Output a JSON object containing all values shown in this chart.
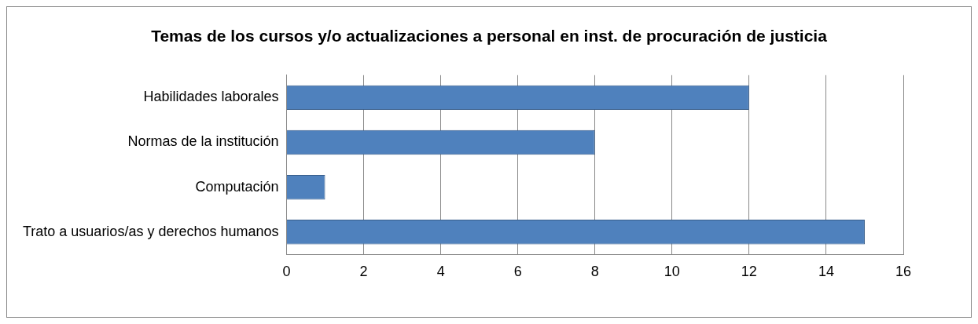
{
  "chart_data": {
    "type": "bar",
    "orientation": "horizontal",
    "title": "Temas de los cursos y/o actualizaciones a personal en inst. de procuración de justicia",
    "categories": [
      "Habilidades laborales",
      "Normas de la institución",
      "Computación",
      "Trato a usuarios/as y derechos humanos"
    ],
    "values": [
      12,
      8,
      1,
      15
    ],
    "color": "#4f81bd",
    "xlim": [
      0,
      16
    ],
    "xticks": [
      0,
      2,
      4,
      6,
      8,
      10,
      12,
      14,
      16
    ],
    "grid": "x",
    "legend": false
  }
}
